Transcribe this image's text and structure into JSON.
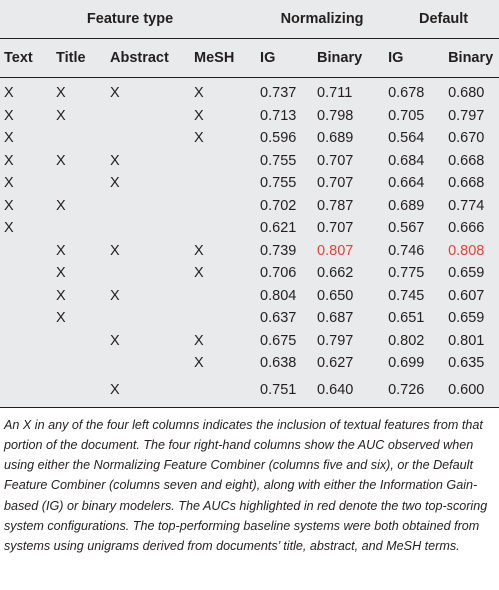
{
  "headers": {
    "feature_type": "Feature type",
    "normalizing": "Normalizing",
    "default": "Default",
    "columns": [
      "Text",
      "Title",
      "Abstract",
      "MeSH",
      "IG",
      "Binary",
      "IG",
      "Binary"
    ]
  },
  "rows": [
    [
      "X",
      "X",
      "X",
      "X",
      "0.737",
      "0.711",
      "0.678",
      "0.680"
    ],
    [
      "X",
      "X",
      "",
      "X",
      "0.713",
      "0.798",
      "0.705",
      "0.797"
    ],
    [
      "X",
      "",
      "",
      "X",
      "0.596",
      "0.689",
      "0.564",
      "0.670"
    ],
    [
      "X",
      "X",
      "X",
      "",
      "0.755",
      "0.707",
      "0.684",
      "0.668"
    ],
    [
      "X",
      "",
      "X",
      "",
      "0.755",
      "0.707",
      "0.664",
      "0.668"
    ],
    [
      "X",
      "X",
      "",
      "",
      "0.702",
      "0.787",
      "0.689",
      "0.774"
    ],
    [
      "X",
      "",
      "",
      "",
      "0.621",
      "0.707",
      "0.567",
      "0.666"
    ],
    [
      "",
      "X",
      "X",
      "X",
      "0.739",
      "0.807",
      "0.746",
      "0.808"
    ],
    [
      "",
      "X",
      "",
      "X",
      "0.706",
      "0.662",
      "0.775",
      "0.659"
    ],
    [
      "",
      "X",
      "X",
      "",
      "0.804",
      "0.650",
      "0.745",
      "0.607"
    ],
    [
      "",
      "X",
      "",
      "",
      "0.637",
      "0.687",
      "0.651",
      "0.659"
    ],
    [
      "",
      "",
      "X",
      "X",
      "0.675",
      "0.797",
      "0.802",
      "0.801"
    ],
    [
      "",
      "",
      "",
      "X",
      "0.638",
      "0.627",
      "0.699",
      "0.635"
    ],
    [
      "",
      "",
      "X",
      "",
      "0.751",
      "0.640",
      "0.726",
      "0.600"
    ]
  ],
  "highlight_color": "#e8403a",
  "highlights": [
    [
      7,
      5
    ],
    [
      7,
      7
    ]
  ],
  "caption": "An X in any of the four left columns indicates the inclusion of textual features from that portion of the document. The four right-hand columns show the AUC observed when using either the Normalizing Feature Combiner (columns five and six), or the Default Feature Combiner (columns seven and eight), along with either the Information Gain-based (IG) or binary modelers. The AUCs highlighted in red denote the two top-scoring system configurations. The top-performing baseline systems were both obtained from systems using unigrams derived from documents’ title, abstract, and MeSH terms."
}
